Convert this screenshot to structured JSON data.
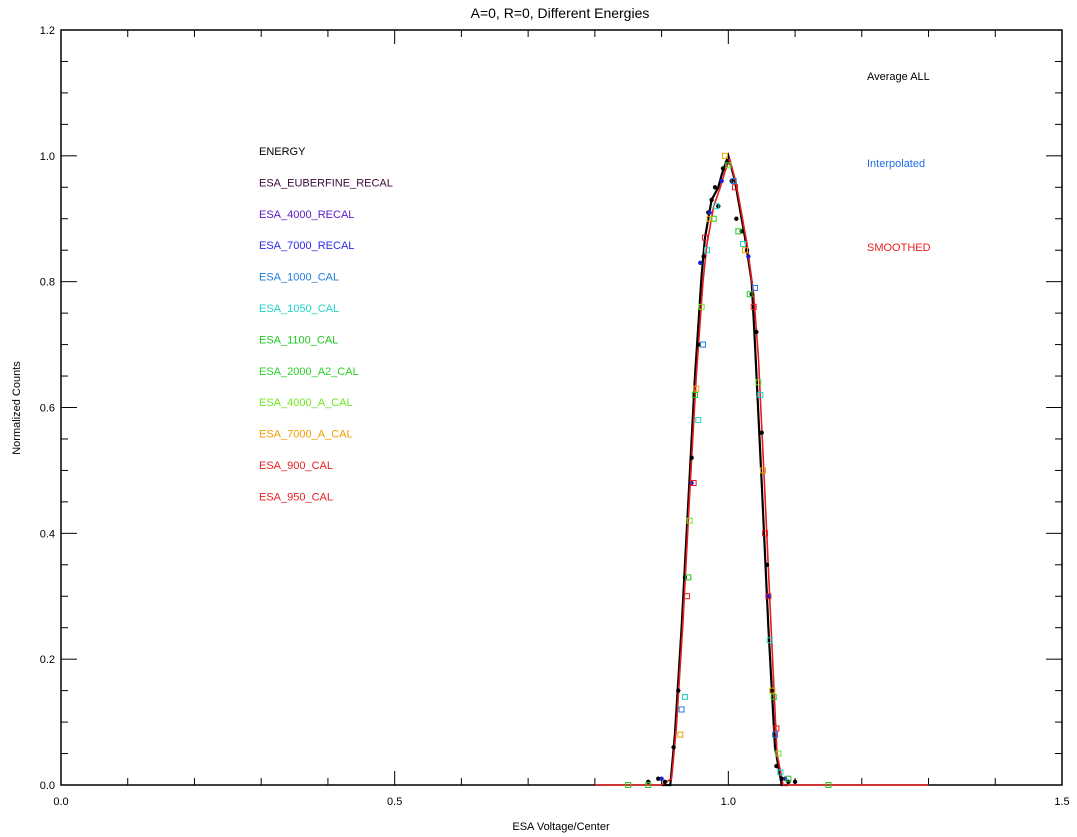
{
  "chart_data": {
    "type": "line",
    "title": "A=0, R=0, Different Energies",
    "xlabel": "ESA Voltage/Center",
    "ylabel": "Normalized Counts",
    "xlim": [
      0.0,
      1.5
    ],
    "ylim": [
      0.0,
      1.2
    ],
    "x_ticks": [
      {
        "value": 0.0,
        "label": "0.0"
      },
      {
        "value": 0.5,
        "label": "0.5"
      },
      {
        "value": 1.0,
        "label": "1.0"
      },
      {
        "value": 1.5,
        "label": "1.5"
      }
    ],
    "y_ticks": [
      {
        "value": 0.0,
        "label": "0.0"
      },
      {
        "value": 0.2,
        "label": "0.2"
      },
      {
        "value": 0.4,
        "label": "0.4"
      },
      {
        "value": 0.6,
        "label": "0.6"
      },
      {
        "value": 0.8,
        "label": "0.8"
      },
      {
        "value": 1.0,
        "label": "1.0"
      },
      {
        "value": 1.2,
        "label": "1.2"
      }
    ],
    "legend_left": {
      "header": {
        "label": "ENERGY",
        "color": "#000000"
      },
      "entries": [
        {
          "label": "ESA_EUBERFINE_RECAL",
          "color": "#3a0a3a"
        },
        {
          "label": "ESA_4000_RECAL",
          "color": "#5a18c8"
        },
        {
          "label": "ESA_7000_RECAL",
          "color": "#2a2ae6"
        },
        {
          "label": "ESA_1000_CAL",
          "color": "#1e7ee6"
        },
        {
          "label": "ESA_1050_CAL",
          "color": "#1ed2c8"
        },
        {
          "label": "ESA_1100_CAL",
          "color": "#1ec81e"
        },
        {
          "label": "ESA_2000_A2_CAL",
          "color": "#28d228"
        },
        {
          "label": "ESA_4000_A_CAL",
          "color": "#6ee61e"
        },
        {
          "label": "ESA_7000_A_CAL",
          "color": "#f0a000"
        },
        {
          "label": "ESA_900_CAL",
          "color": "#e61e1e"
        },
        {
          "label": "ESA_950_CAL",
          "color": "#e61e1e"
        }
      ]
    },
    "legend_right": [
      {
        "label": "Average ALL",
        "color": "#000000"
      },
      {
        "label": "Interpolated",
        "color": "#1e6ee6"
      },
      {
        "label": "SMOOTHED",
        "color": "#e61e1e"
      }
    ],
    "series": [
      {
        "name": "Average ALL",
        "color": "#000000",
        "style": "line",
        "x": [
          0.9,
          0.913,
          0.92,
          0.93,
          0.94,
          0.95,
          0.96,
          0.965,
          0.975,
          0.985,
          0.99,
          1.0,
          1.01,
          1.015,
          1.025,
          1.035,
          1.04,
          1.05,
          1.06,
          1.07,
          1.08,
          1.09
        ],
        "y": [
          0.0,
          0.0,
          0.08,
          0.25,
          0.45,
          0.65,
          0.81,
          0.87,
          0.93,
          0.95,
          0.97,
          1.0,
          0.96,
          0.93,
          0.87,
          0.8,
          0.7,
          0.48,
          0.25,
          0.06,
          0.0,
          0.0
        ]
      },
      {
        "name": "SMOOTHED",
        "color": "#e61e1e",
        "style": "line",
        "x": [
          0.8,
          0.9,
          0.915,
          0.922,
          0.932,
          0.942,
          0.952,
          0.962,
          0.968,
          0.978,
          0.988,
          0.995,
          1.002,
          1.012,
          1.018,
          1.028,
          1.038,
          1.045,
          1.055,
          1.065,
          1.073,
          1.082,
          1.3
        ],
        "y": [
          0.0,
          0.0,
          0.01,
          0.09,
          0.26,
          0.46,
          0.65,
          0.8,
          0.86,
          0.92,
          0.95,
          0.975,
          0.995,
          0.955,
          0.92,
          0.86,
          0.78,
          0.68,
          0.46,
          0.23,
          0.05,
          0.0,
          0.0
        ]
      },
      {
        "name": "points-black",
        "color": "#000000",
        "style": "dots",
        "x": [
          0.88,
          0.895,
          0.905,
          0.918,
          0.925,
          0.935,
          0.945,
          0.955,
          0.963,
          0.97,
          0.975,
          0.98,
          0.985,
          0.992,
          0.998,
          1.005,
          1.012,
          1.02,
          1.028,
          1.035,
          1.042,
          1.05,
          1.058,
          1.065,
          1.072,
          1.08,
          1.09,
          1.1
        ],
        "y": [
          0.005,
          0.01,
          0.005,
          0.06,
          0.15,
          0.33,
          0.52,
          0.7,
          0.84,
          0.91,
          0.93,
          0.95,
          0.92,
          0.98,
          0.99,
          0.96,
          0.9,
          0.88,
          0.85,
          0.78,
          0.72,
          0.56,
          0.35,
          0.15,
          0.03,
          0.01,
          0.005,
          0.005
        ]
      },
      {
        "name": "points-blue",
        "color": "#1e1ecc",
        "style": "dots",
        "x": [
          0.9,
          0.945,
          0.958,
          0.972,
          0.99,
          1.03,
          1.06,
          1.085
        ],
        "y": [
          0.01,
          0.48,
          0.83,
          0.91,
          0.96,
          0.84,
          0.3,
          0.01
        ]
      },
      {
        "name": "points-cyan",
        "color": "#1ed2c8",
        "style": "squares",
        "x": [
          0.935,
          0.955,
          0.968,
          0.982,
          1.022,
          1.048,
          1.062,
          1.078
        ],
        "y": [
          0.14,
          0.58,
          0.85,
          0.92,
          0.86,
          0.62,
          0.23,
          0.02
        ]
      },
      {
        "name": "points-blue-sq",
        "color": "#1e7ee6",
        "style": "squares",
        "x": [
          0.93,
          0.962,
          1.008,
          1.04,
          1.07
        ],
        "y": [
          0.12,
          0.7,
          0.96,
          0.79,
          0.08
        ]
      },
      {
        "name": "points-green",
        "color": "#1ec81e",
        "style": "squares",
        "x": [
          0.85,
          0.88,
          0.94,
          0.95,
          0.978,
          1.015,
          1.032,
          1.068,
          1.09,
          1.15
        ],
        "y": [
          0.0,
          0.0,
          0.33,
          0.62,
          0.9,
          0.88,
          0.78,
          0.14,
          0.01,
          0.0
        ]
      },
      {
        "name": "points-lime",
        "color": "#6ee61e",
        "style": "squares",
        "x": [
          0.942,
          0.96,
          1.0,
          1.045,
          1.075
        ],
        "y": [
          0.42,
          0.76,
          0.985,
          0.64,
          0.05
        ]
      },
      {
        "name": "points-orange",
        "color": "#f0a000",
        "style": "squares",
        "x": [
          0.928,
          0.952,
          0.972,
          0.995,
          1.025,
          1.052,
          1.066
        ],
        "y": [
          0.08,
          0.63,
          0.9,
          1.0,
          0.85,
          0.5,
          0.15
        ]
      },
      {
        "name": "points-red",
        "color": "#e61e1e",
        "style": "squares",
        "x": [
          0.938,
          0.948,
          0.965,
          1.01,
          1.038,
          1.055,
          1.06,
          1.072
        ],
        "y": [
          0.3,
          0.48,
          0.87,
          0.95,
          0.76,
          0.4,
          0.3,
          0.09
        ]
      }
    ]
  }
}
